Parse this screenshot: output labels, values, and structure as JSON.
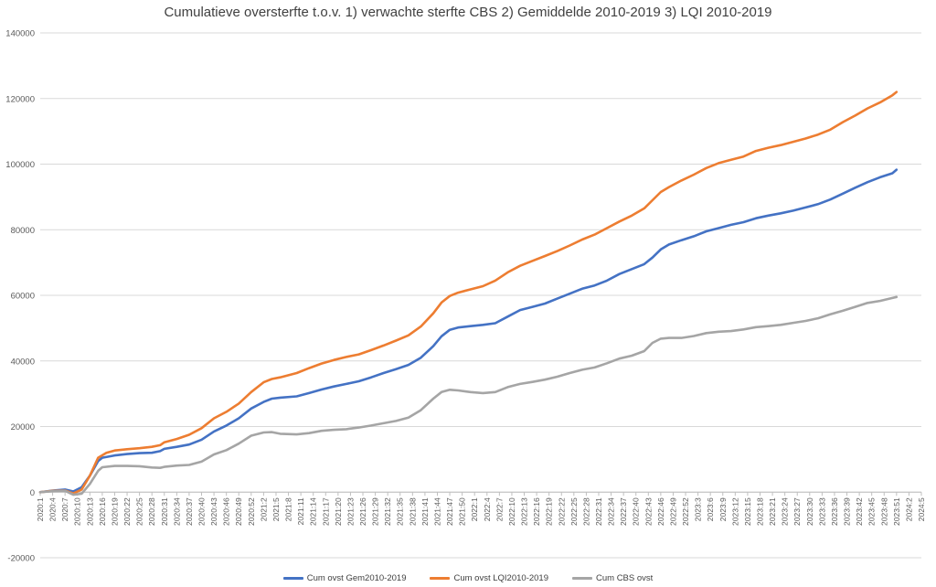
{
  "chart_data": {
    "type": "line",
    "title": "Cumulatieve oversterfte t.o.v.   1) verwachte sterfte CBS   2) Gemiddelde 2010-2019   3) LQI 2010-2019",
    "xlabel": "",
    "ylabel": "",
    "ylim": [
      -20000,
      140000
    ],
    "yticks": [
      -20000,
      0,
      20000,
      40000,
      60000,
      80000,
      100000,
      120000,
      140000
    ],
    "grid": true,
    "legend_position": "bottom",
    "x_range": [
      "2020:1",
      "2024:5"
    ],
    "x_tick_labels": [
      "2020:1",
      "2020:4",
      "2020:7",
      "2020:10",
      "2020:13",
      "2020:16",
      "2020:19",
      "2020:22",
      "2020:25",
      "2020:28",
      "2020:31",
      "2020:34",
      "2020:37",
      "2020:40",
      "2020:43",
      "2020:46",
      "2020:49",
      "2020:52",
      "2021:2",
      "2021:5",
      "2021:8",
      "2021:11",
      "2021:14",
      "2021:17",
      "2021:20",
      "2021:23",
      "2021:26",
      "2021:29",
      "2021:32",
      "2021:35",
      "2021:38",
      "2021:41",
      "2021:44",
      "2021:47",
      "2021:50",
      "2022:1",
      "2022:4",
      "2022:7",
      "2022:10",
      "2022:13",
      "2022:16",
      "2022:19",
      "2022:22",
      "2022:25",
      "2022:28",
      "2022:31",
      "2022:34",
      "2022:37",
      "2022:40",
      "2022:43",
      "2022:46",
      "2022:49",
      "2022:52",
      "2023:3",
      "2023:6",
      "2023:9",
      "2023:12",
      "2023:15",
      "2023:18",
      "2023:21",
      "2023:24",
      "2023:27",
      "2023:30",
      "2023:33",
      "2023:36",
      "2023:39",
      "2023:42",
      "2023:45",
      "2023:48",
      "2023:51",
      "2024:2",
      "2024:5"
    ],
    "series": [
      {
        "name": "Cum ovst Gem2010-2019",
        "color": "#4472C4",
        "points": [
          [
            0,
            0
          ],
          [
            3,
            500
          ],
          [
            6,
            800
          ],
          [
            8,
            200
          ],
          [
            10,
            1500
          ],
          [
            12,
            5000
          ],
          [
            14,
            9500
          ],
          [
            15,
            10500
          ],
          [
            18,
            11200
          ],
          [
            21,
            11600
          ],
          [
            24,
            11900
          ],
          [
            27,
            12000
          ],
          [
            29,
            12500
          ],
          [
            30,
            13200
          ],
          [
            33,
            13800
          ],
          [
            36,
            14500
          ],
          [
            39,
            16000
          ],
          [
            42,
            18500
          ],
          [
            45,
            20300
          ],
          [
            48,
            22500
          ],
          [
            51,
            25500
          ],
          [
            54,
            27500
          ],
          [
            56,
            28500
          ],
          [
            58,
            28800
          ],
          [
            62,
            29200
          ],
          [
            65,
            30200
          ],
          [
            68,
            31300
          ],
          [
            71,
            32200
          ],
          [
            74,
            33000
          ],
          [
            77,
            33800
          ],
          [
            80,
            35000
          ],
          [
            83,
            36300
          ],
          [
            86,
            37500
          ],
          [
            89,
            38800
          ],
          [
            92,
            41000
          ],
          [
            95,
            44500
          ],
          [
            97,
            47500
          ],
          [
            99,
            49500
          ],
          [
            101,
            50200
          ],
          [
            104,
            50600
          ],
          [
            107,
            51000
          ],
          [
            110,
            51500
          ],
          [
            113,
            53500
          ],
          [
            116,
            55500
          ],
          [
            119,
            56500
          ],
          [
            122,
            57500
          ],
          [
            125,
            59000
          ],
          [
            128,
            60500
          ],
          [
            131,
            62000
          ],
          [
            134,
            63000
          ],
          [
            137,
            64500
          ],
          [
            140,
            66500
          ],
          [
            143,
            68000
          ],
          [
            146,
            69500
          ],
          [
            148,
            71500
          ],
          [
            150,
            74000
          ],
          [
            152,
            75500
          ],
          [
            155,
            76800
          ],
          [
            158,
            78000
          ],
          [
            161,
            79500
          ],
          [
            164,
            80500
          ],
          [
            167,
            81500
          ],
          [
            170,
            82300
          ],
          [
            173,
            83500
          ],
          [
            176,
            84300
          ],
          [
            179,
            85000
          ],
          [
            182,
            85800
          ],
          [
            185,
            86800
          ],
          [
            188,
            87800
          ],
          [
            191,
            89200
          ],
          [
            194,
            91000
          ],
          [
            197,
            92800
          ],
          [
            200,
            94500
          ],
          [
            203,
            96000
          ],
          [
            206,
            97200
          ],
          [
            207,
            98300
          ]
        ]
      },
      {
        "name": "Cum ovst LQI2010-2019",
        "color": "#ED7D31",
        "points": [
          [
            0,
            0
          ],
          [
            3,
            400
          ],
          [
            6,
            500
          ],
          [
            8,
            -400
          ],
          [
            10,
            800
          ],
          [
            12,
            5000
          ],
          [
            14,
            10500
          ],
          [
            16,
            12000
          ],
          [
            18,
            12700
          ],
          [
            21,
            13100
          ],
          [
            24,
            13400
          ],
          [
            27,
            13800
          ],
          [
            29,
            14300
          ],
          [
            30,
            15200
          ],
          [
            33,
            16200
          ],
          [
            36,
            17500
          ],
          [
            39,
            19500
          ],
          [
            42,
            22500
          ],
          [
            45,
            24500
          ],
          [
            48,
            27000
          ],
          [
            51,
            30500
          ],
          [
            54,
            33500
          ],
          [
            56,
            34500
          ],
          [
            58,
            35000
          ],
          [
            62,
            36300
          ],
          [
            65,
            37800
          ],
          [
            68,
            39200
          ],
          [
            71,
            40300
          ],
          [
            74,
            41200
          ],
          [
            77,
            42000
          ],
          [
            80,
            43300
          ],
          [
            83,
            44700
          ],
          [
            86,
            46200
          ],
          [
            89,
            47800
          ],
          [
            92,
            50500
          ],
          [
            95,
            54500
          ],
          [
            97,
            57800
          ],
          [
            99,
            59800
          ],
          [
            101,
            60800
          ],
          [
            104,
            61800
          ],
          [
            107,
            62800
          ],
          [
            110,
            64500
          ],
          [
            113,
            67000
          ],
          [
            116,
            69000
          ],
          [
            119,
            70500
          ],
          [
            122,
            72000
          ],
          [
            125,
            73500
          ],
          [
            128,
            75200
          ],
          [
            131,
            77000
          ],
          [
            134,
            78500
          ],
          [
            137,
            80500
          ],
          [
            140,
            82500
          ],
          [
            143,
            84300
          ],
          [
            146,
            86500
          ],
          [
            148,
            89000
          ],
          [
            150,
            91500
          ],
          [
            152,
            93000
          ],
          [
            155,
            95000
          ],
          [
            158,
            96800
          ],
          [
            161,
            98800
          ],
          [
            164,
            100300
          ],
          [
            167,
            101300
          ],
          [
            170,
            102300
          ],
          [
            173,
            104000
          ],
          [
            176,
            105000
          ],
          [
            179,
            105800
          ],
          [
            182,
            106800
          ],
          [
            185,
            107800
          ],
          [
            188,
            109000
          ],
          [
            191,
            110500
          ],
          [
            194,
            112800
          ],
          [
            197,
            114800
          ],
          [
            200,
            117000
          ],
          [
            203,
            118800
          ],
          [
            206,
            121000
          ],
          [
            207,
            122000
          ]
        ]
      },
      {
        "name": "Cum CBS ovst",
        "color": "#A5A5A5",
        "points": [
          [
            0,
            0
          ],
          [
            3,
            300
          ],
          [
            6,
            400
          ],
          [
            8,
            -800
          ],
          [
            10,
            -500
          ],
          [
            12,
            2500
          ],
          [
            14,
            6500
          ],
          [
            15,
            7600
          ],
          [
            18,
            8000
          ],
          [
            21,
            8000
          ],
          [
            24,
            7900
          ],
          [
            27,
            7500
          ],
          [
            29,
            7400
          ],
          [
            30,
            7700
          ],
          [
            33,
            8100
          ],
          [
            36,
            8300
          ],
          [
            39,
            9300
          ],
          [
            42,
            11500
          ],
          [
            45,
            12800
          ],
          [
            48,
            14800
          ],
          [
            51,
            17200
          ],
          [
            54,
            18200
          ],
          [
            56,
            18300
          ],
          [
            58,
            17800
          ],
          [
            62,
            17600
          ],
          [
            65,
            18000
          ],
          [
            68,
            18700
          ],
          [
            71,
            19000
          ],
          [
            74,
            19200
          ],
          [
            77,
            19700
          ],
          [
            80,
            20300
          ],
          [
            83,
            21000
          ],
          [
            86,
            21700
          ],
          [
            89,
            22700
          ],
          [
            92,
            25000
          ],
          [
            95,
            28500
          ],
          [
            97,
            30500
          ],
          [
            99,
            31200
          ],
          [
            101,
            31000
          ],
          [
            104,
            30500
          ],
          [
            107,
            30200
          ],
          [
            110,
            30500
          ],
          [
            113,
            32000
          ],
          [
            116,
            33000
          ],
          [
            119,
            33600
          ],
          [
            122,
            34300
          ],
          [
            125,
            35200
          ],
          [
            128,
            36300
          ],
          [
            131,
            37300
          ],
          [
            134,
            38000
          ],
          [
            137,
            39300
          ],
          [
            140,
            40700
          ],
          [
            143,
            41600
          ],
          [
            146,
            43000
          ],
          [
            148,
            45500
          ],
          [
            150,
            46800
          ],
          [
            152,
            47000
          ],
          [
            155,
            47000
          ],
          [
            158,
            47600
          ],
          [
            161,
            48500
          ],
          [
            164,
            48900
          ],
          [
            167,
            49100
          ],
          [
            170,
            49600
          ],
          [
            173,
            50300
          ],
          [
            176,
            50600
          ],
          [
            179,
            51000
          ],
          [
            182,
            51600
          ],
          [
            185,
            52200
          ],
          [
            188,
            53000
          ],
          [
            191,
            54200
          ],
          [
            194,
            55300
          ],
          [
            197,
            56500
          ],
          [
            200,
            57700
          ],
          [
            203,
            58300
          ],
          [
            206,
            59200
          ],
          [
            207,
            59500
          ]
        ]
      }
    ]
  }
}
